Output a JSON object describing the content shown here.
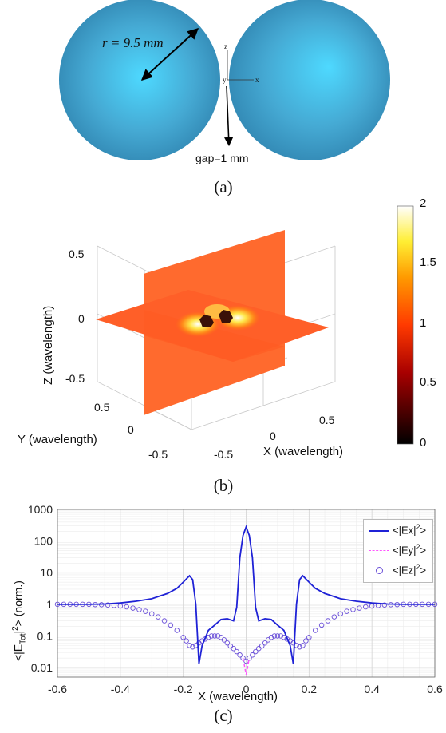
{
  "panel_a": {
    "radius_label": "r = 9.5 mm",
    "gap_label": "gap=1 mm",
    "axis_z": "z",
    "axis_y": "y",
    "axis_x": "x",
    "caption": "(a)",
    "sphere_color": "#5fb9d9"
  },
  "panel_b": {
    "z_label": "Z (wavelength)",
    "y_label": "Y (wavelength)",
    "x_label": "X (wavelength)",
    "z_ticks": [
      "0.5",
      "0",
      "-0.5"
    ],
    "y_ticks": [
      "0.5",
      "0",
      "-0.5"
    ],
    "x_ticks": [
      "-0.5",
      "0",
      "0.5"
    ],
    "colorbar_ticks": [
      "2",
      "1.5",
      "1",
      "0.5",
      "0"
    ],
    "caption": "(b)"
  },
  "panel_c": {
    "caption": "(c)",
    "chart_data": {
      "type": "line",
      "xlabel": "X (wavelength)",
      "ylabel": "<|E_Tot|^2> (norm.)",
      "ylabel_main": "<|E",
      "ylabel_sub": "Tot",
      "ylabel_rest": "|",
      "ylabel_sup": "2",
      "ylabel_end": "> (norm.)",
      "xlim": [
        -0.6,
        0.6
      ],
      "ylim": [
        0.005,
        1000
      ],
      "yscale": "log",
      "grid": true,
      "legend_position": "top-right",
      "x_ticks": [
        "-0.6",
        "-0.4",
        "-0.2",
        "0",
        "0.2",
        "0.4",
        "0.6"
      ],
      "y_ticks": [
        "1000",
        "100",
        "10",
        "1",
        "0.1",
        "0.01"
      ],
      "legend": [
        {
          "main": "<|Ex|",
          "sup": "2",
          "end": ">",
          "color": "#1f22d6",
          "style": "solid"
        },
        {
          "main": "<|Ey|",
          "sup": "2",
          "end": ">",
          "color": "#ff55ff",
          "style": "dashed"
        },
        {
          "main": "<|Ez|",
          "sup": "2",
          "end": ">",
          "color": "#6a4fd8",
          "style": "circle"
        }
      ],
      "series": [
        {
          "name": "<|Ex|2>",
          "x": [
            -0.6,
            -0.5,
            -0.45,
            -0.4,
            -0.35,
            -0.3,
            -0.25,
            -0.22,
            -0.2,
            -0.18,
            -0.17,
            -0.16,
            -0.15,
            -0.14,
            -0.12,
            -0.1,
            -0.08,
            -0.06,
            -0.04,
            -0.03,
            -0.02,
            -0.01,
            0,
            0.01,
            0.02,
            0.03,
            0.04,
            0.06,
            0.08,
            0.1,
            0.12,
            0.14,
            0.15,
            0.16,
            0.17,
            0.18,
            0.2,
            0.22,
            0.25,
            0.3,
            0.35,
            0.4,
            0.45,
            0.5,
            0.6
          ],
          "y": [
            1,
            1,
            1.02,
            1.1,
            1.25,
            1.5,
            2.2,
            3.2,
            5,
            8,
            6,
            1,
            0.013,
            0.05,
            0.15,
            0.22,
            0.33,
            0.35,
            0.3,
            0.8,
            30,
            150,
            280,
            150,
            30,
            0.8,
            0.3,
            0.35,
            0.33,
            0.22,
            0.15,
            0.05,
            0.013,
            1,
            6,
            8,
            5,
            3.2,
            2.2,
            1.5,
            1.25,
            1.1,
            1.02,
            1,
            1
          ]
        },
        {
          "name": "<|Ey|2>",
          "x": [
            -0.01,
            0,
            0.01
          ],
          "y": [
            0.02,
            0.006,
            0.02
          ]
        },
        {
          "name": "<|Ez|2>",
          "x": [
            -0.6,
            -0.58,
            -0.56,
            -0.54,
            -0.52,
            -0.5,
            -0.48,
            -0.46,
            -0.44,
            -0.42,
            -0.4,
            -0.38,
            -0.36,
            -0.34,
            -0.32,
            -0.3,
            -0.28,
            -0.26,
            -0.24,
            -0.22,
            -0.2,
            -0.19,
            -0.18,
            -0.17,
            -0.16,
            -0.15,
            -0.14,
            -0.13,
            -0.12,
            -0.11,
            -0.1,
            -0.09,
            -0.08,
            -0.07,
            -0.06,
            -0.05,
            -0.04,
            -0.03,
            -0.02,
            -0.01,
            0,
            0.01,
            0.02,
            0.03,
            0.04,
            0.05,
            0.06,
            0.07,
            0.08,
            0.09,
            0.1,
            0.11,
            0.12,
            0.13,
            0.14,
            0.15,
            0.16,
            0.17,
            0.18,
            0.19,
            0.2,
            0.22,
            0.24,
            0.26,
            0.28,
            0.3,
            0.32,
            0.34,
            0.36,
            0.38,
            0.4,
            0.42,
            0.44,
            0.46,
            0.48,
            0.5,
            0.52,
            0.54,
            0.56,
            0.58,
            0.6
          ],
          "y": [
            1,
            1,
            1,
            1,
            1,
            1,
            0.98,
            0.97,
            0.95,
            0.92,
            0.88,
            0.83,
            0.76,
            0.68,
            0.6,
            0.5,
            0.4,
            0.3,
            0.22,
            0.15,
            0.09,
            0.07,
            0.05,
            0.045,
            0.05,
            0.06,
            0.07,
            0.08,
            0.09,
            0.1,
            0.1,
            0.1,
            0.09,
            0.075,
            0.06,
            0.048,
            0.04,
            0.032,
            0.025,
            0.02,
            0.016,
            0.02,
            0.025,
            0.032,
            0.04,
            0.048,
            0.06,
            0.075,
            0.09,
            0.1,
            0.1,
            0.1,
            0.09,
            0.08,
            0.07,
            0.06,
            0.05,
            0.045,
            0.05,
            0.07,
            0.09,
            0.15,
            0.22,
            0.3,
            0.4,
            0.5,
            0.6,
            0.68,
            0.76,
            0.83,
            0.88,
            0.92,
            0.95,
            0.97,
            0.98,
            1,
            1,
            1,
            1,
            1,
            1
          ]
        }
      ]
    }
  }
}
